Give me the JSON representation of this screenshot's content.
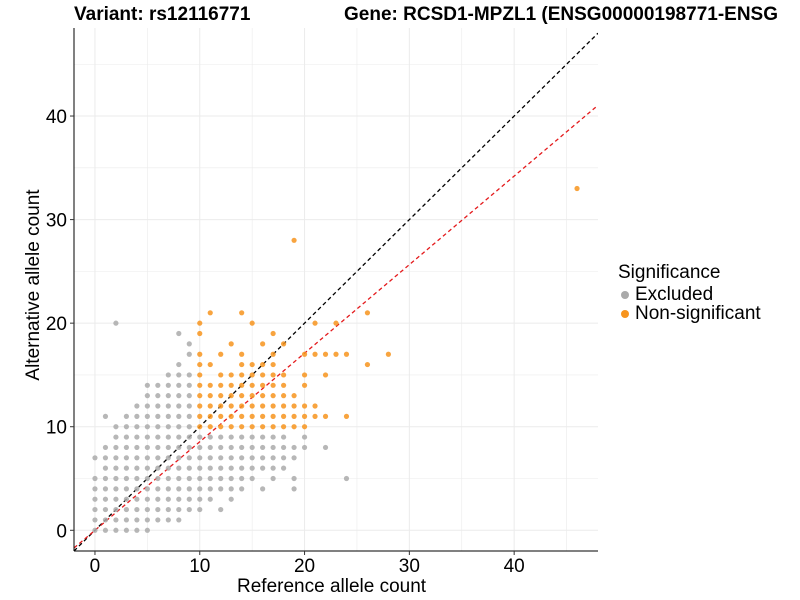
{
  "chart_data": {
    "type": "scatter",
    "title_left": "Variant: rs12116771",
    "title_right": "Gene: RCSD1-MPZL1 (ENSG00000198771-ENSG",
    "xlabel": "Reference allele count",
    "ylabel": "Alternative allele count",
    "xlim": [
      -2,
      48
    ],
    "ylim": [
      -2,
      48.5
    ],
    "x_ticks": [
      0,
      10,
      20,
      30,
      40
    ],
    "y_ticks": [
      0,
      10,
      20,
      30,
      40
    ],
    "grid": true,
    "legend": {
      "title": "Significance",
      "position": "right",
      "entries": [
        {
          "name": "Excluded",
          "color": "#aaaaaa"
        },
        {
          "name": "Non-significant",
          "color": "#f7941d"
        }
      ]
    },
    "reference_lines": [
      {
        "style": "dashed",
        "color": "#000000",
        "slope": 1,
        "intercept": 0
      },
      {
        "style": "dashed",
        "color": "#e41a1c",
        "slope": 0.855,
        "intercept": 0
      }
    ],
    "series": [
      {
        "name": "Excluded",
        "color": "#aaaaaa",
        "points": [
          [
            0,
            0
          ],
          [
            0,
            1
          ],
          [
            0,
            2
          ],
          [
            0,
            3
          ],
          [
            0,
            4
          ],
          [
            0,
            5
          ],
          [
            0,
            7
          ],
          [
            1,
            0
          ],
          [
            1,
            1
          ],
          [
            1,
            2
          ],
          [
            1,
            3
          ],
          [
            1,
            4
          ],
          [
            1,
            5
          ],
          [
            1,
            6
          ],
          [
            1,
            7
          ],
          [
            1,
            8
          ],
          [
            1,
            11
          ],
          [
            2,
            0
          ],
          [
            2,
            1
          ],
          [
            2,
            2
          ],
          [
            2,
            3
          ],
          [
            2,
            4
          ],
          [
            2,
            5
          ],
          [
            2,
            6
          ],
          [
            2,
            7
          ],
          [
            2,
            8
          ],
          [
            2,
            9
          ],
          [
            2,
            10
          ],
          [
            2,
            20
          ],
          [
            3,
            0
          ],
          [
            3,
            1
          ],
          [
            3,
            2
          ],
          [
            3,
            3
          ],
          [
            3,
            4
          ],
          [
            3,
            5
          ],
          [
            3,
            6
          ],
          [
            3,
            7
          ],
          [
            3,
            8
          ],
          [
            3,
            9
          ],
          [
            3,
            10
          ],
          [
            3,
            11
          ],
          [
            4,
            0
          ],
          [
            4,
            1
          ],
          [
            4,
            2
          ],
          [
            4,
            3
          ],
          [
            4,
            4
          ],
          [
            4,
            5
          ],
          [
            4,
            6
          ],
          [
            4,
            7
          ],
          [
            4,
            8
          ],
          [
            4,
            9
          ],
          [
            4,
            10
          ],
          [
            4,
            11
          ],
          [
            4,
            12
          ],
          [
            5,
            0
          ],
          [
            5,
            1
          ],
          [
            5,
            2
          ],
          [
            5,
            3
          ],
          [
            5,
            4
          ],
          [
            5,
            5
          ],
          [
            5,
            6
          ],
          [
            5,
            7
          ],
          [
            5,
            8
          ],
          [
            5,
            9
          ],
          [
            5,
            10
          ],
          [
            5,
            11
          ],
          [
            5,
            12
          ],
          [
            5,
            13
          ],
          [
            5,
            14
          ],
          [
            6,
            1
          ],
          [
            6,
            2
          ],
          [
            6,
            3
          ],
          [
            6,
            4
          ],
          [
            6,
            5
          ],
          [
            6,
            6
          ],
          [
            6,
            7
          ],
          [
            6,
            8
          ],
          [
            6,
            9
          ],
          [
            6,
            10
          ],
          [
            6,
            11
          ],
          [
            6,
            12
          ],
          [
            6,
            13
          ],
          [
            6,
            14
          ],
          [
            7,
            1
          ],
          [
            7,
            2
          ],
          [
            7,
            3
          ],
          [
            7,
            4
          ],
          [
            7,
            5
          ],
          [
            7,
            6
          ],
          [
            7,
            7
          ],
          [
            7,
            8
          ],
          [
            7,
            9
          ],
          [
            7,
            10
          ],
          [
            7,
            11
          ],
          [
            7,
            12
          ],
          [
            7,
            13
          ],
          [
            7,
            14
          ],
          [
            7,
            15
          ],
          [
            8,
            1
          ],
          [
            8,
            2
          ],
          [
            8,
            3
          ],
          [
            8,
            4
          ],
          [
            8,
            5
          ],
          [
            8,
            6
          ],
          [
            8,
            7
          ],
          [
            8,
            8
          ],
          [
            8,
            9
          ],
          [
            8,
            10
          ],
          [
            8,
            11
          ],
          [
            8,
            12
          ],
          [
            8,
            13
          ],
          [
            8,
            14
          ],
          [
            8,
            15
          ],
          [
            8,
            16
          ],
          [
            8,
            19
          ],
          [
            9,
            2
          ],
          [
            9,
            3
          ],
          [
            9,
            4
          ],
          [
            9,
            5
          ],
          [
            9,
            6
          ],
          [
            9,
            7
          ],
          [
            9,
            8
          ],
          [
            9,
            9
          ],
          [
            9,
            10
          ],
          [
            9,
            11
          ],
          [
            9,
            12
          ],
          [
            9,
            13
          ],
          [
            9,
            14
          ],
          [
            9,
            15
          ],
          [
            9,
            17
          ],
          [
            9,
            18
          ],
          [
            10,
            2
          ],
          [
            10,
            3
          ],
          [
            10,
            4
          ],
          [
            10,
            5
          ],
          [
            10,
            6
          ],
          [
            10,
            7
          ],
          [
            10,
            8
          ],
          [
            10,
            9
          ],
          [
            11,
            3
          ],
          [
            11,
            4
          ],
          [
            11,
            5
          ],
          [
            11,
            6
          ],
          [
            11,
            7
          ],
          [
            11,
            8
          ],
          [
            11,
            9
          ],
          [
            12,
            2
          ],
          [
            12,
            4
          ],
          [
            12,
            5
          ],
          [
            12,
            6
          ],
          [
            12,
            7
          ],
          [
            12,
            8
          ],
          [
            12,
            9
          ],
          [
            13,
            3
          ],
          [
            13,
            4
          ],
          [
            13,
            5
          ],
          [
            13,
            6
          ],
          [
            13,
            7
          ],
          [
            13,
            8
          ],
          [
            13,
            9
          ],
          [
            14,
            4
          ],
          [
            14,
            5
          ],
          [
            14,
            6
          ],
          [
            14,
            7
          ],
          [
            14,
            8
          ],
          [
            14,
            9
          ],
          [
            15,
            5
          ],
          [
            15,
            6
          ],
          [
            15,
            7
          ],
          [
            15,
            8
          ],
          [
            15,
            9
          ],
          [
            16,
            4
          ],
          [
            16,
            6
          ],
          [
            16,
            7
          ],
          [
            16,
            8
          ],
          [
            16,
            9
          ],
          [
            17,
            5
          ],
          [
            17,
            6
          ],
          [
            17,
            7
          ],
          [
            17,
            8
          ],
          [
            17,
            9
          ],
          [
            18,
            6
          ],
          [
            18,
            7
          ],
          [
            18,
            8
          ],
          [
            18,
            9
          ],
          [
            19,
            4
          ],
          [
            19,
            5
          ],
          [
            19,
            7
          ],
          [
            19,
            8
          ],
          [
            20,
            8
          ],
          [
            20,
            9
          ],
          [
            22,
            8
          ],
          [
            24,
            5
          ]
        ]
      },
      {
        "name": "Non-significant",
        "color": "#f7941d",
        "points": [
          [
            10,
            10
          ],
          [
            10,
            11
          ],
          [
            10,
            12
          ],
          [
            10,
            13
          ],
          [
            10,
            14
          ],
          [
            10,
            15
          ],
          [
            10,
            16
          ],
          [
            10,
            17
          ],
          [
            10,
            19
          ],
          [
            10,
            20
          ],
          [
            11,
            10
          ],
          [
            11,
            11
          ],
          [
            11,
            12
          ],
          [
            11,
            13
          ],
          [
            11,
            14
          ],
          [
            11,
            16
          ],
          [
            11,
            21
          ],
          [
            12,
            10
          ],
          [
            12,
            11
          ],
          [
            12,
            12
          ],
          [
            12,
            13
          ],
          [
            12,
            14
          ],
          [
            12,
            15
          ],
          [
            12,
            17
          ],
          [
            13,
            10
          ],
          [
            13,
            11
          ],
          [
            13,
            12
          ],
          [
            13,
            13
          ],
          [
            13,
            14
          ],
          [
            13,
            15
          ],
          [
            13,
            18
          ],
          [
            14,
            10
          ],
          [
            14,
            11
          ],
          [
            14,
            12
          ],
          [
            14,
            13
          ],
          [
            14,
            14
          ],
          [
            14,
            15
          ],
          [
            14,
            16
          ],
          [
            14,
            17
          ],
          [
            14,
            21
          ],
          [
            15,
            10
          ],
          [
            15,
            11
          ],
          [
            15,
            12
          ],
          [
            15,
            13
          ],
          [
            15,
            14
          ],
          [
            15,
            15
          ],
          [
            15,
            16
          ],
          [
            15,
            20
          ],
          [
            16,
            10
          ],
          [
            16,
            11
          ],
          [
            16,
            12
          ],
          [
            16,
            13
          ],
          [
            16,
            14
          ],
          [
            16,
            15
          ],
          [
            16,
            16
          ],
          [
            16,
            18
          ],
          [
            17,
            10
          ],
          [
            17,
            11
          ],
          [
            17,
            12
          ],
          [
            17,
            13
          ],
          [
            17,
            14
          ],
          [
            17,
            15
          ],
          [
            17,
            16
          ],
          [
            17,
            17
          ],
          [
            17,
            19
          ],
          [
            18,
            10
          ],
          [
            18,
            11
          ],
          [
            18,
            12
          ],
          [
            18,
            13
          ],
          [
            18,
            14
          ],
          [
            18,
            15
          ],
          [
            18,
            18
          ],
          [
            19,
            10
          ],
          [
            19,
            11
          ],
          [
            19,
            12
          ],
          [
            19,
            13
          ],
          [
            19,
            28
          ],
          [
            20,
            10
          ],
          [
            20,
            11
          ],
          [
            20,
            12
          ],
          [
            20,
            14
          ],
          [
            20,
            15
          ],
          [
            20,
            17
          ],
          [
            21,
            11
          ],
          [
            21,
            12
          ],
          [
            21,
            17
          ],
          [
            21,
            20
          ],
          [
            22,
            11
          ],
          [
            22,
            15
          ],
          [
            22,
            17
          ],
          [
            23,
            17
          ],
          [
            23,
            20
          ],
          [
            24,
            11
          ],
          [
            24,
            17
          ],
          [
            26,
            16
          ],
          [
            26,
            21
          ],
          [
            28,
            17
          ],
          [
            46,
            33
          ]
        ]
      }
    ]
  }
}
